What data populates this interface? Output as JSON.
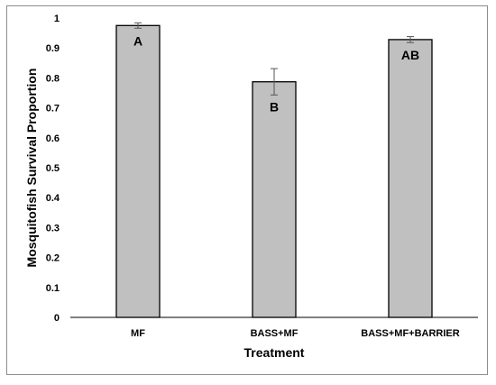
{
  "chart_data": {
    "type": "bar",
    "title": "",
    "xlabel": "Treatment",
    "ylabel": "Mosquitofish Survival Proportion",
    "ylim": [
      0,
      1
    ],
    "yticks": [
      0,
      0.1,
      0.2,
      0.3,
      0.4,
      0.5,
      0.6,
      0.7,
      0.8,
      0.9,
      1
    ],
    "ytick_labels": [
      "0",
      "0.1",
      "0.2",
      "0.3",
      "0.4",
      "0.5",
      "0.6",
      "0.7",
      "0.8",
      "0.9",
      "1"
    ],
    "categories": [
      "MF",
      "BASS+MF",
      "BASS+MF+BARRIER"
    ],
    "values": [
      0.975,
      0.787,
      0.928
    ],
    "errors": [
      0.009,
      0.044,
      0.01
    ],
    "letters": [
      "A",
      "B",
      "AB"
    ],
    "grid": false,
    "legend": "none",
    "bar_color": "#c0c0c0",
    "bar_edge_color": "#000000"
  }
}
